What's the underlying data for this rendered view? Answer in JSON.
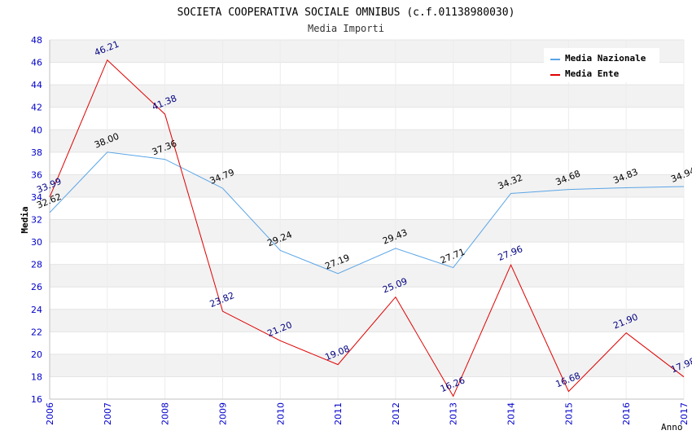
{
  "chart_data": {
    "type": "line",
    "title": "SOCIETA COOPERATIVA SOCIALE OMNIBUS (c.f.01138980030)",
    "subtitle": "Media Importi",
    "xlabel": "Anno",
    "ylabel": "Media",
    "ylim": [
      16,
      48
    ],
    "ytick_step": 2,
    "categories": [
      "2006",
      "2007",
      "2008",
      "2009",
      "2010",
      "2011",
      "2012",
      "2013",
      "2014",
      "2015",
      "2016",
      "2017"
    ],
    "legend_position": "top-right",
    "series": [
      {
        "name": "Media Nazionale",
        "color": "#5aa5e6",
        "label_color": "#000000",
        "values": [
          32.62,
          38.0,
          37.36,
          34.79,
          29.24,
          27.19,
          29.43,
          27.71,
          34.32,
          34.68,
          34.83,
          34.94
        ],
        "labels": [
          "32.62",
          "38.00",
          "37.36",
          "34.79",
          "29.24",
          "27.19",
          "29.43",
          "27.71",
          "34.32",
          "34.68",
          "34.83",
          "34.94"
        ]
      },
      {
        "name": "Media Ente",
        "color": "#e00000",
        "label_color": "#000080",
        "values": [
          33.99,
          46.21,
          41.38,
          23.82,
          21.2,
          19.08,
          25.09,
          16.26,
          27.96,
          16.68,
          21.9,
          17.98
        ],
        "labels": [
          "33.99",
          "46.21",
          "41.38",
          "23.82",
          "21.20",
          "19.08",
          "25.09",
          "16.26",
          "27.96",
          "16.68",
          "21.90",
          "17.98"
        ]
      }
    ],
    "colors": {
      "band": "#f2f2f2",
      "tick_label": "#0000cc",
      "axis": "#c0c0c0"
    }
  }
}
